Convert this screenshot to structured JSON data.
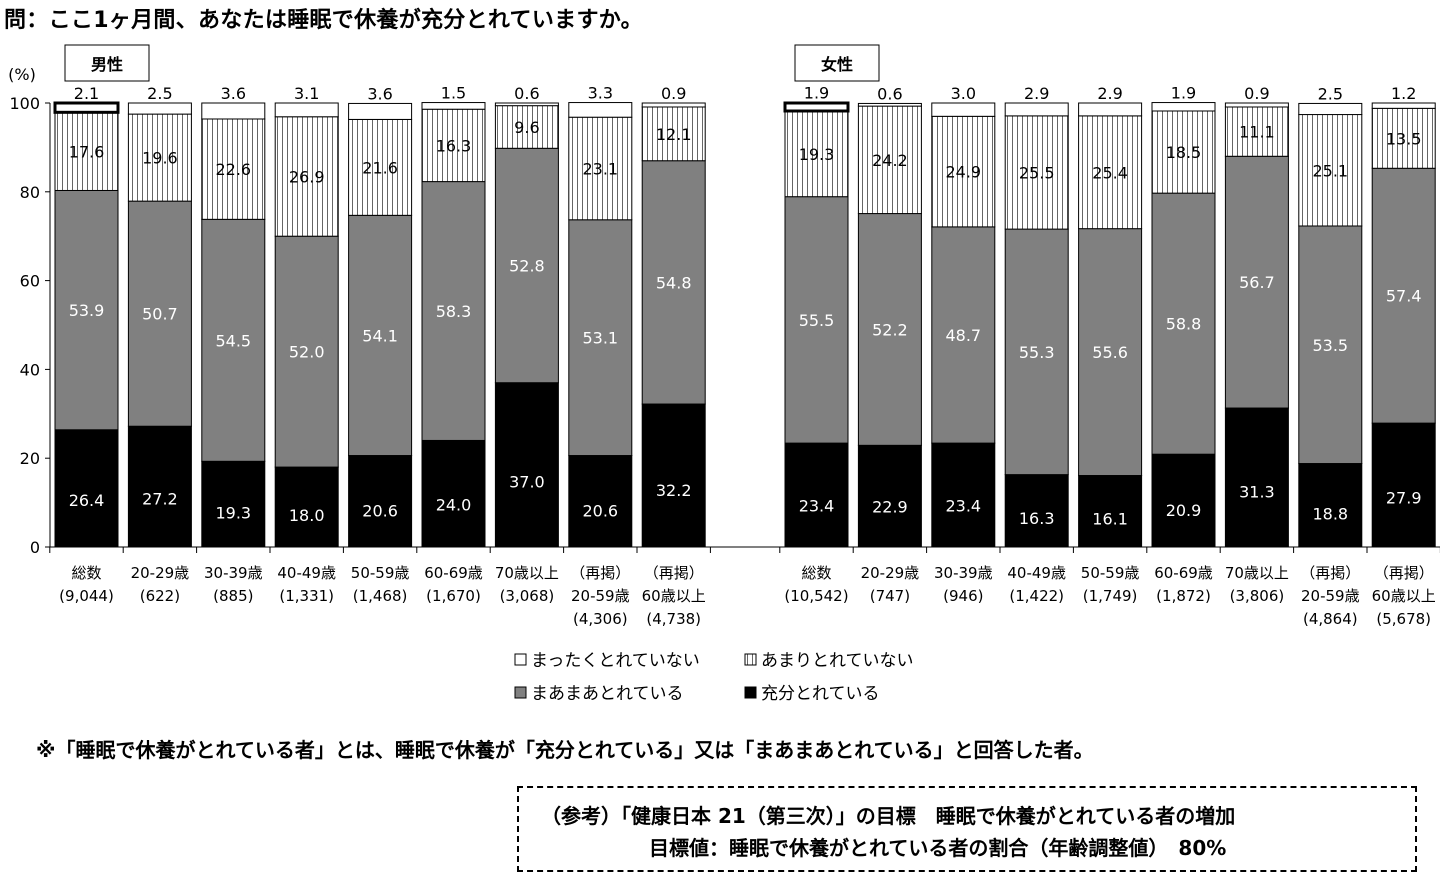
{
  "question": "問：ここ1ヶ月間、あなたは睡眠で休養が充分とれていますか。",
  "note": "※「睡眠で休養がとれている者」とは、睡眠で休養が「充分とれている」又は「まあまあとれている」と回答した者。",
  "reference": {
    "line1": "（参考）「健康日本 21（第三次）」の目標　睡眠で休養がとれている者の増加",
    "line2": "目標値：睡眠で休養がとれている者の割合（年齢調整値）　80%"
  },
  "chart_data": {
    "type": "bar",
    "stacked": true,
    "yunit": "(%)",
    "ylim": [
      0,
      100
    ],
    "yticks": [
      0,
      20,
      40,
      60,
      80,
      100
    ],
    "series_order_bottom_to_top": [
      "充分とれている",
      "まあまあとれている",
      "あまりとれていない",
      "まったくとれていない"
    ],
    "legend": [
      {
        "name": "まったくとれていない",
        "color": "#ffffff",
        "pattern": "none"
      },
      {
        "name": "あまりとれていない",
        "color": "#ffffff",
        "pattern": "vertical-lines"
      },
      {
        "name": "まあまあとれている",
        "color": "#808080",
        "pattern": "none"
      },
      {
        "name": "充分とれている",
        "color": "#000000",
        "pattern": "none"
      }
    ],
    "panels": [
      {
        "label": "男性",
        "categories": [
          {
            "line1": "総数",
            "line2": "(9,044)",
            "line3": "",
            "highlight": true
          },
          {
            "line1": "20-29歳",
            "line2": "(622)",
            "line3": ""
          },
          {
            "line1": "30-39歳",
            "line2": "(885)",
            "line3": ""
          },
          {
            "line1": "40-49歳",
            "line2": "(1,331)",
            "line3": ""
          },
          {
            "line1": "50-59歳",
            "line2": "(1,468)",
            "line3": ""
          },
          {
            "line1": "60-69歳",
            "line2": "(1,670)",
            "line3": ""
          },
          {
            "line1": "70歳以上",
            "line2": "(3,068)",
            "line3": ""
          },
          {
            "line1": "（再掲）",
            "line2": "20-59歳",
            "line3": "(4,306)"
          },
          {
            "line1": "（再掲）",
            "line2": "60歳以上",
            "line3": "(4,738)"
          }
        ],
        "series": [
          {
            "name": "充分とれている",
            "values": [
              26.4,
              27.2,
              19.3,
              18.0,
              20.6,
              24.0,
              37.0,
              20.6,
              32.2
            ]
          },
          {
            "name": "まあまあとれている",
            "values": [
              53.9,
              50.7,
              54.5,
              52.0,
              54.1,
              58.3,
              52.8,
              53.1,
              54.8
            ]
          },
          {
            "name": "あまりとれていない",
            "values": [
              17.6,
              19.6,
              22.6,
              26.9,
              21.6,
              16.3,
              9.6,
              23.1,
              12.1
            ]
          },
          {
            "name": "まったくとれていない",
            "values": [
              2.1,
              2.5,
              3.6,
              3.1,
              3.6,
              1.5,
              0.6,
              3.3,
              0.9
            ]
          }
        ]
      },
      {
        "label": "女性",
        "categories": [
          {
            "line1": "総数",
            "line2": "(10,542)",
            "line3": "",
            "highlight": true
          },
          {
            "line1": "20-29歳",
            "line2": "(747)",
            "line3": ""
          },
          {
            "line1": "30-39歳",
            "line2": "(946)",
            "line3": ""
          },
          {
            "line1": "40-49歳",
            "line2": "(1,422)",
            "line3": ""
          },
          {
            "line1": "50-59歳",
            "line2": "(1,749)",
            "line3": ""
          },
          {
            "line1": "60-69歳",
            "line2": "(1,872)",
            "line3": ""
          },
          {
            "line1": "70歳以上",
            "line2": "(3,806)",
            "line3": ""
          },
          {
            "line1": "（再掲）",
            "line2": "20-59歳",
            "line3": "(4,864)"
          },
          {
            "line1": "（再掲）",
            "line2": "60歳以上",
            "line3": "(5,678)"
          }
        ],
        "series": [
          {
            "name": "充分とれている",
            "values": [
              23.4,
              22.9,
              23.4,
              16.3,
              16.1,
              20.9,
              31.3,
              18.8,
              27.9
            ]
          },
          {
            "name": "まあまあとれている",
            "values": [
              55.5,
              52.2,
              48.7,
              55.3,
              55.6,
              58.8,
              56.7,
              53.5,
              57.4
            ]
          },
          {
            "name": "あまりとれていない",
            "values": [
              19.3,
              24.2,
              24.9,
              25.5,
              25.4,
              18.5,
              11.1,
              25.1,
              13.5
            ]
          },
          {
            "name": "まったくとれていない",
            "values": [
              1.9,
              0.6,
              3.0,
              2.9,
              2.9,
              1.9,
              0.9,
              2.5,
              1.2
            ]
          }
        ]
      }
    ]
  }
}
